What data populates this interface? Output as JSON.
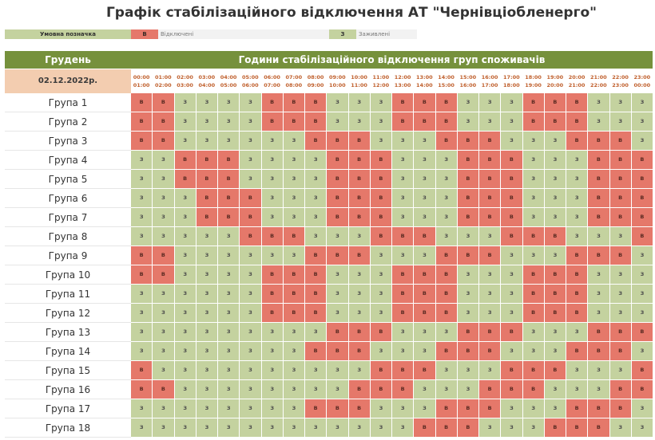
{
  "title": "Графік стабілізаційного відключення АТ \"Чернівціобленерго\"",
  "legend": {
    "label": "Умовна позначка",
    "off_code": "В",
    "off_text": "Відключені",
    "on_code": "З",
    "on_text": "Заживлені"
  },
  "header": {
    "month": "Грудень",
    "hours_title": "Години стабілізаційного відключення груп споживачів",
    "date": "02.12.2022р.",
    "time_slots": [
      {
        "start": "00:00",
        "end": "01:00"
      },
      {
        "start": "01:00",
        "end": "02:00"
      },
      {
        "start": "02:00",
        "end": "03:00"
      },
      {
        "start": "03:00",
        "end": "04:00"
      },
      {
        "start": "04:00",
        "end": "05:00"
      },
      {
        "start": "05:00",
        "end": "06:00"
      },
      {
        "start": "06:00",
        "end": "07:00"
      },
      {
        "start": "07:00",
        "end": "08:00"
      },
      {
        "start": "08:00",
        "end": "09:00"
      },
      {
        "start": "09:00",
        "end": "10:00"
      },
      {
        "start": "10:00",
        "end": "11:00"
      },
      {
        "start": "11:00",
        "end": "12:00"
      },
      {
        "start": "12:00",
        "end": "13:00"
      },
      {
        "start": "13:00",
        "end": "14:00"
      },
      {
        "start": "14:00",
        "end": "15:00"
      },
      {
        "start": "15:00",
        "end": "16:00"
      },
      {
        "start": "16:00",
        "end": "17:00"
      },
      {
        "start": "17:00",
        "end": "18:00"
      },
      {
        "start": "18:00",
        "end": "19:00"
      },
      {
        "start": "19:00",
        "end": "20:00"
      },
      {
        "start": "20:00",
        "end": "21:00"
      },
      {
        "start": "21:00",
        "end": "22:00"
      },
      {
        "start": "22:00",
        "end": "23:00"
      },
      {
        "start": "23:00",
        "end": "00:00"
      }
    ]
  },
  "colors": {
    "on": "#c4d29f",
    "off": "#e5786a",
    "header": "#76913c",
    "date_bg": "#f3cdb0",
    "time_text": "#c0602d"
  },
  "groups": [
    {
      "name": "Група 1",
      "schedule": [
        "В",
        "В",
        "З",
        "З",
        "З",
        "З",
        "В",
        "В",
        "В",
        "З",
        "З",
        "З",
        "В",
        "В",
        "В",
        "З",
        "З",
        "З",
        "В",
        "В",
        "В",
        "З",
        "З",
        "З"
      ]
    },
    {
      "name": "Група 2",
      "schedule": [
        "В",
        "В",
        "З",
        "З",
        "З",
        "З",
        "В",
        "В",
        "В",
        "З",
        "З",
        "З",
        "В",
        "В",
        "В",
        "З",
        "З",
        "З",
        "В",
        "В",
        "В",
        "З",
        "З",
        "З"
      ]
    },
    {
      "name": "Група 3",
      "schedule": [
        "В",
        "В",
        "З",
        "З",
        "З",
        "З",
        "З",
        "З",
        "В",
        "В",
        "В",
        "З",
        "З",
        "З",
        "В",
        "В",
        "В",
        "З",
        "З",
        "З",
        "В",
        "В",
        "В",
        "З"
      ]
    },
    {
      "name": "Група 4",
      "schedule": [
        "З",
        "З",
        "В",
        "В",
        "В",
        "З",
        "З",
        "З",
        "З",
        "В",
        "В",
        "В",
        "З",
        "З",
        "З",
        "В",
        "В",
        "В",
        "З",
        "З",
        "З",
        "В",
        "В",
        "В"
      ]
    },
    {
      "name": "Група 5",
      "schedule": [
        "З",
        "З",
        "В",
        "В",
        "В",
        "З",
        "З",
        "З",
        "З",
        "В",
        "В",
        "В",
        "З",
        "З",
        "З",
        "В",
        "В",
        "В",
        "З",
        "З",
        "З",
        "В",
        "В",
        "В"
      ]
    },
    {
      "name": "Група 6",
      "schedule": [
        "З",
        "З",
        "З",
        "В",
        "В",
        "В",
        "З",
        "З",
        "З",
        "В",
        "В",
        "В",
        "З",
        "З",
        "З",
        "В",
        "В",
        "В",
        "З",
        "З",
        "З",
        "В",
        "В",
        "В"
      ]
    },
    {
      "name": "Група 7",
      "schedule": [
        "З",
        "З",
        "З",
        "В",
        "В",
        "В",
        "З",
        "З",
        "З",
        "В",
        "В",
        "В",
        "З",
        "З",
        "З",
        "В",
        "В",
        "В",
        "З",
        "З",
        "З",
        "В",
        "В",
        "В"
      ]
    },
    {
      "name": "Група 8",
      "schedule": [
        "З",
        "З",
        "З",
        "З",
        "З",
        "В",
        "В",
        "В",
        "З",
        "З",
        "З",
        "В",
        "В",
        "В",
        "З",
        "З",
        "З",
        "В",
        "В",
        "В",
        "З",
        "З",
        "З",
        "В"
      ]
    },
    {
      "name": "Група 9",
      "schedule": [
        "В",
        "В",
        "З",
        "З",
        "З",
        "З",
        "З",
        "З",
        "В",
        "В",
        "В",
        "З",
        "З",
        "З",
        "В",
        "В",
        "В",
        "З",
        "З",
        "З",
        "В",
        "В",
        "В",
        "З"
      ]
    },
    {
      "name": "Група 10",
      "schedule": [
        "В",
        "В",
        "З",
        "З",
        "З",
        "З",
        "В",
        "В",
        "В",
        "З",
        "З",
        "З",
        "В",
        "В",
        "В",
        "З",
        "З",
        "З",
        "В",
        "В",
        "В",
        "З",
        "З",
        "З"
      ]
    },
    {
      "name": "Група 11",
      "schedule": [
        "З",
        "З",
        "З",
        "З",
        "З",
        "З",
        "В",
        "В",
        "В",
        "З",
        "З",
        "З",
        "В",
        "В",
        "В",
        "З",
        "З",
        "З",
        "В",
        "В",
        "В",
        "З",
        "З",
        "З"
      ]
    },
    {
      "name": "Група 12",
      "schedule": [
        "З",
        "З",
        "З",
        "З",
        "З",
        "З",
        "В",
        "В",
        "В",
        "З",
        "З",
        "З",
        "В",
        "В",
        "В",
        "З",
        "З",
        "З",
        "В",
        "В",
        "В",
        "З",
        "З",
        "З"
      ]
    },
    {
      "name": "Група 13",
      "schedule": [
        "З",
        "З",
        "З",
        "З",
        "З",
        "З",
        "З",
        "З",
        "З",
        "В",
        "В",
        "В",
        "З",
        "З",
        "З",
        "В",
        "В",
        "В",
        "З",
        "З",
        "З",
        "В",
        "В",
        "В"
      ]
    },
    {
      "name": "Група 14",
      "schedule": [
        "З",
        "З",
        "З",
        "З",
        "З",
        "З",
        "З",
        "З",
        "В",
        "В",
        "В",
        "З",
        "З",
        "З",
        "В",
        "В",
        "В",
        "З",
        "З",
        "З",
        "В",
        "В",
        "В",
        "З"
      ]
    },
    {
      "name": "Група 15",
      "schedule": [
        "В",
        "З",
        "З",
        "З",
        "З",
        "З",
        "З",
        "З",
        "З",
        "З",
        "З",
        "В",
        "В",
        "В",
        "З",
        "З",
        "З",
        "В",
        "В",
        "В",
        "З",
        "З",
        "З",
        "В"
      ]
    },
    {
      "name": "Група 16",
      "schedule": [
        "В",
        "В",
        "З",
        "З",
        "З",
        "З",
        "З",
        "З",
        "З",
        "З",
        "В",
        "В",
        "В",
        "З",
        "З",
        "З",
        "В",
        "В",
        "В",
        "З",
        "З",
        "З",
        "В",
        "В"
      ]
    },
    {
      "name": "Група 17",
      "schedule": [
        "З",
        "З",
        "З",
        "З",
        "З",
        "З",
        "З",
        "З",
        "В",
        "В",
        "В",
        "З",
        "З",
        "З",
        "В",
        "В",
        "В",
        "З",
        "З",
        "З",
        "В",
        "В",
        "В",
        "З"
      ]
    },
    {
      "name": "Група 18",
      "schedule": [
        "З",
        "З",
        "З",
        "З",
        "З",
        "З",
        "З",
        "З",
        "З",
        "З",
        "З",
        "З",
        "З",
        "В",
        "В",
        "В",
        "З",
        "З",
        "З",
        "В",
        "В",
        "В",
        "З",
        "З"
      ]
    }
  ]
}
